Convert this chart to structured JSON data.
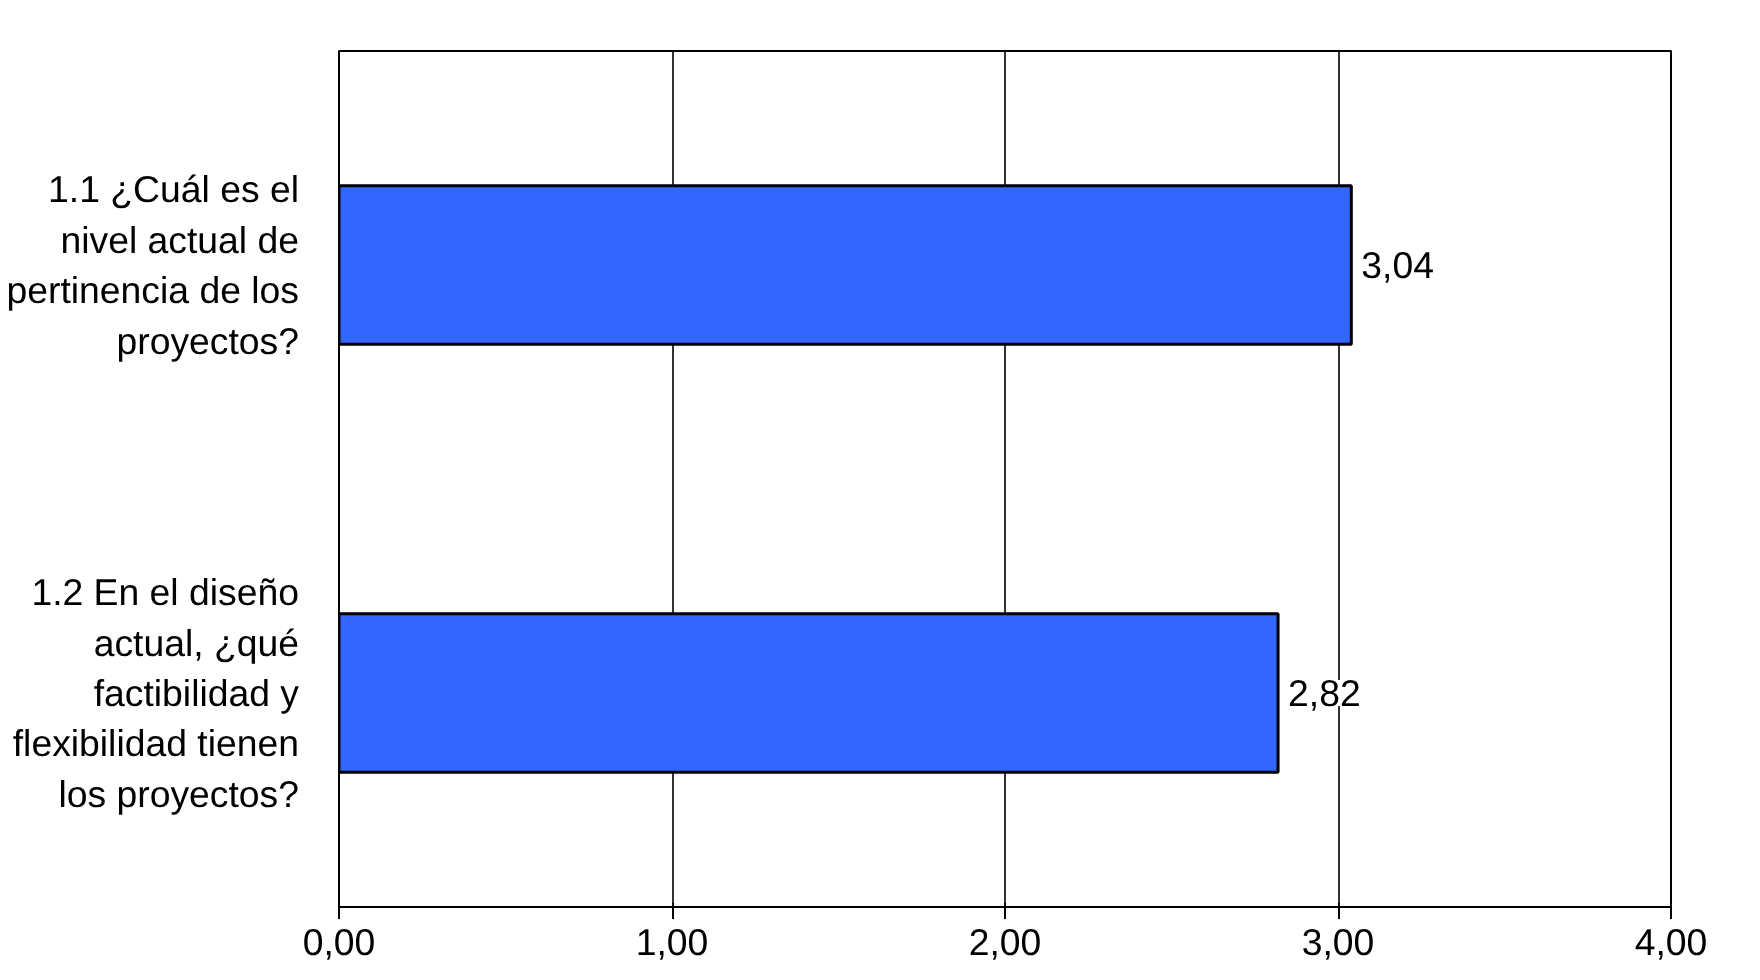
{
  "chart_data": {
    "type": "bar",
    "orientation": "horizontal",
    "categories": [
      "1.1 ¿Cuál es el nivel actual de pertinencia de los proyectos?",
      "1.2 En el diseño actual, ¿qué factibilidad y flexibilidad tienen los proyectos?"
    ],
    "values": [
      3.04,
      2.82
    ],
    "color": "#3366ff",
    "value_labels": [
      "3,04",
      "2,82"
    ],
    "xlim": [
      0,
      4
    ],
    "xticks": [
      {
        "value": 0,
        "label": "0,00"
      },
      {
        "value": 1,
        "label": "1,00"
      },
      {
        "value": 2,
        "label": "2,00"
      },
      {
        "value": 3,
        "label": "3,00"
      },
      {
        "value": 4,
        "label": "4,00"
      }
    ],
    "grid": "x"
  }
}
